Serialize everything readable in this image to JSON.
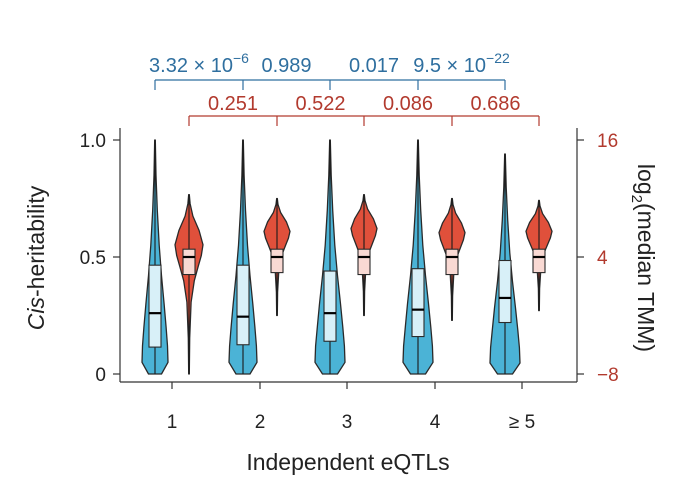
{
  "chart_data": {
    "type": "violin",
    "xlabel": "Independent eQTLs",
    "ylabel_left": {
      "italic": "Cis",
      "rest": "-heritability"
    },
    "ylabel_right": {
      "pre": "log",
      "sub": "2",
      "post": "(median TMM)"
    },
    "categories": [
      "1",
      "2",
      "3",
      "4",
      "≥ 5"
    ],
    "ylim_left": [
      0,
      1
    ],
    "yticks_left": [
      {
        "value": 0,
        "label": "0"
      },
      {
        "value": 0.5,
        "label": "0.5"
      },
      {
        "value": 1,
        "label": "1.0"
      }
    ],
    "ylim_right": [
      -8,
      16
    ],
    "yticks_right": [
      {
        "value": -8,
        "label": "−8"
      },
      {
        "value": 4,
        "label": "4"
      },
      {
        "value": 16,
        "label": "16"
      }
    ],
    "colors": {
      "heritability": "#4bb3d6",
      "heritability_box": "#d8f0f8",
      "expression": "#e0503b",
      "expression_box": "#f9d9d3",
      "pval_blue": "#2f6f9f",
      "pval_red": "#b23a2e",
      "axis": "#333333"
    },
    "series": [
      {
        "axis": "left",
        "stats": [
          {
            "category": "1",
            "min": 0,
            "q1": 0.115,
            "median": 0.26,
            "q3": 0.465,
            "max": 1.0
          },
          {
            "category": "2",
            "min": 0,
            "q1": 0.125,
            "median": 0.245,
            "q3": 0.465,
            "max": 1.0
          },
          {
            "category": "3",
            "min": 0,
            "q1": 0.14,
            "median": 0.26,
            "q3": 0.44,
            "max": 1.0
          },
          {
            "category": "4",
            "min": 0,
            "q1": 0.16,
            "median": 0.275,
            "q3": 0.45,
            "max": 1.0
          },
          {
            "category": "≥ 5",
            "min": 0,
            "q1": 0.22,
            "median": 0.325,
            "q3": 0.485,
            "max": 0.94
          }
        ]
      },
      {
        "axis": "right",
        "stats": [
          {
            "category": "1",
            "min": -8,
            "q1": 2.2,
            "median": 4.0,
            "q3": 4.8,
            "max": 10.4
          },
          {
            "category": "2",
            "min": -2,
            "q1": 2.4,
            "median": 4.0,
            "q3": 4.8,
            "max": 10.0
          },
          {
            "category": "3",
            "min": -2,
            "q1": 2.2,
            "median": 4.0,
            "q3": 4.8,
            "max": 10.4
          },
          {
            "category": "4",
            "min": -2.5,
            "q1": 2.2,
            "median": 4.0,
            "q3": 4.8,
            "max": 10.0
          },
          {
            "category": "≥ 5",
            "min": -1.5,
            "q1": 2.4,
            "median": 4.0,
            "q3": 4.8,
            "max": 9.8
          }
        ]
      }
    ],
    "pvalues_heritability": [
      {
        "between": [
          "1",
          "2"
        ],
        "mantissa": "3.32",
        "base": "× 10",
        "exp": "−6"
      },
      {
        "between": [
          "2",
          "3"
        ],
        "mantissa": "0.989",
        "base": "",
        "exp": ""
      },
      {
        "between": [
          "3",
          "4"
        ],
        "mantissa": "0.017",
        "base": "",
        "exp": ""
      },
      {
        "between": [
          "4",
          "≥ 5"
        ],
        "mantissa": "9.5",
        "base": "× 10",
        "exp": "−22"
      }
    ],
    "pvalues_expression": [
      {
        "between": [
          "1",
          "2"
        ],
        "label": "0.251"
      },
      {
        "between": [
          "2",
          "3"
        ],
        "label": "0.522"
      },
      {
        "between": [
          "3",
          "4"
        ],
        "label": "0.086"
      },
      {
        "between": [
          "4",
          "≥ 5"
        ],
        "label": "0.686"
      }
    ]
  }
}
